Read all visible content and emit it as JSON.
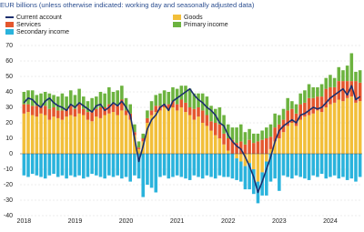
{
  "chart_data": {
    "type": "stacked-bar-line",
    "title": "EUR billions (unless otherwise indicated: working day and seasonally adjusted data)",
    "categories": [
      "2018",
      null,
      null,
      null,
      null,
      null,
      null,
      null,
      null,
      null,
      null,
      null,
      "2019",
      null,
      null,
      null,
      null,
      null,
      null,
      null,
      null,
      null,
      null,
      null,
      "2020",
      null,
      null,
      null,
      null,
      null,
      null,
      null,
      null,
      null,
      null,
      null,
      "2021",
      null,
      null,
      null,
      null,
      null,
      null,
      null,
      null,
      null,
      null,
      null,
      "2022",
      null,
      null,
      null,
      null,
      null,
      null,
      null,
      null,
      null,
      null,
      null,
      "2023",
      null,
      null,
      null,
      null,
      null,
      null,
      null,
      null,
      null,
      null,
      null,
      "2024",
      null,
      null,
      null,
      null,
      null,
      null,
      null
    ],
    "series": [
      {
        "name": "Goods",
        "color": "#f2bf3a",
        "kind": "bar",
        "values": [
          26,
          27,
          25,
          24,
          26,
          25,
          22,
          24,
          23,
          22,
          24,
          25,
          24,
          26,
          25,
          22,
          21,
          24,
          23,
          25,
          26,
          27,
          25,
          28,
          25,
          22,
          12,
          3,
          8,
          20,
          25,
          27,
          28,
          30,
          29,
          30,
          28,
          30,
          27,
          25,
          22,
          24,
          20,
          18,
          15,
          12,
          10,
          6,
          2,
          0,
          -3,
          -5,
          -8,
          -6,
          -10,
          -18,
          -12,
          -5,
          3,
          8,
          10,
          14,
          18,
          20,
          18,
          22,
          24,
          25,
          26,
          28,
          27,
          30,
          32,
          33,
          35,
          34,
          36,
          37,
          33,
          34
        ]
      },
      {
        "name": "Services",
        "color": "#e4572e",
        "kind": "bar",
        "values": [
          6,
          5,
          6,
          7,
          5,
          6,
          7,
          6,
          5,
          6,
          5,
          6,
          5,
          6,
          4,
          5,
          6,
          5,
          7,
          5,
          6,
          5,
          6,
          7,
          3,
          4,
          2,
          1,
          2,
          3,
          3,
          4,
          3,
          2,
          3,
          4,
          4,
          5,
          6,
          5,
          7,
          6,
          8,
          7,
          6,
          8,
          9,
          7,
          8,
          9,
          7,
          8,
          6,
          9,
          7,
          8,
          9,
          10,
          8,
          9,
          9,
          8,
          10,
          9,
          8,
          10,
          9,
          11,
          10,
          9,
          10,
          12,
          11,
          10,
          12,
          13,
          11,
          10,
          14,
          12
        ]
      },
      {
        "name": "Primary income",
        "color": "#6cb33f",
        "kind": "bar",
        "values": [
          8,
          9,
          10,
          7,
          8,
          9,
          10,
          8,
          9,
          11,
          8,
          10,
          9,
          10,
          8,
          7,
          9,
          8,
          10,
          9,
          11,
          8,
          10,
          9,
          8,
          6,
          5,
          4,
          3,
          5,
          6,
          7,
          8,
          9,
          8,
          9,
          10,
          9,
          11,
          12,
          10,
          9,
          11,
          12,
          10,
          9,
          11,
          12,
          9,
          8,
          10,
          11,
          8,
          7,
          6,
          5,
          6,
          7,
          8,
          9,
          6,
          7,
          8,
          5,
          6,
          7,
          8,
          9,
          7,
          6,
          8,
          7,
          8,
          6,
          9,
          7,
          10,
          18,
          6,
          8
        ]
      },
      {
        "name": "Secondary income",
        "color": "#2ab3dc",
        "kind": "bar",
        "values": [
          -14,
          -15,
          -13,
          -14,
          -15,
          -16,
          -14,
          -13,
          -15,
          -14,
          -16,
          -14,
          -15,
          -14,
          -16,
          -15,
          -13,
          -14,
          -15,
          -16,
          -14,
          -15,
          -14,
          -16,
          -15,
          -18,
          -14,
          -16,
          -28,
          -20,
          -22,
          -25,
          -15,
          -14,
          -16,
          -15,
          -14,
          -15,
          -16,
          -17,
          -14,
          -15,
          -16,
          -14,
          -15,
          -16,
          -14,
          -15,
          -15,
          -16,
          -14,
          -13,
          -15,
          -17,
          -16,
          -14,
          -15,
          -22,
          -18,
          -16,
          -24,
          -14,
          -15,
          -16,
          -14,
          -15,
          -16,
          -17,
          -14,
          -15,
          -13,
          -16,
          -15,
          -14,
          -16,
          -15,
          -17,
          -16,
          -18,
          -15
        ]
      },
      {
        "name": "Current account",
        "color": "#1c2f6e",
        "kind": "line",
        "values": [
          33,
          36,
          35,
          32,
          30,
          34,
          36,
          33,
          31,
          30,
          28,
          32,
          30,
          33,
          31,
          29,
          27,
          31,
          32,
          28,
          30,
          33,
          31,
          34,
          30,
          25,
          10,
          -5,
          5,
          16,
          22,
          25,
          30,
          32,
          28,
          34,
          36,
          38,
          40,
          42,
          38,
          35,
          33,
          30,
          28,
          25,
          20,
          18,
          12,
          8,
          5,
          3,
          -2,
          -8,
          -15,
          -25,
          -18,
          -10,
          -2,
          8,
          15,
          18,
          20,
          22,
          20,
          25,
          26,
          28,
          30,
          29,
          30,
          33,
          36,
          38,
          40,
          42,
          38,
          44,
          35,
          37
        ]
      }
    ],
    "ylim": [
      -40,
      70
    ],
    "yticks": [
      70,
      60,
      50,
      40,
      30,
      20,
      10,
      0,
      -10,
      -20,
      -30,
      -40
    ],
    "grid": true
  }
}
